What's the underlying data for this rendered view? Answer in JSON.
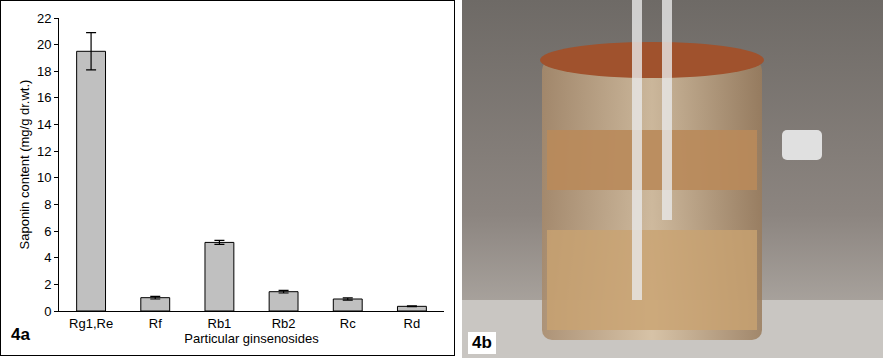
{
  "chart_data": {
    "type": "bar",
    "panel_label": "4a",
    "x_label": "Particular ginsenosides",
    "y_label": "Saponin content (mg/g dr.wt.)",
    "categories": [
      "Rg1,Re",
      "Rf",
      "Rb1",
      "Rb2",
      "Rc",
      "Rd"
    ],
    "values": [
      19.5,
      1.0,
      5.15,
      1.45,
      0.9,
      0.35
    ],
    "errors": [
      1.4,
      0.1,
      0.15,
      0.1,
      0.08,
      0.03
    ],
    "color": "#c0c0c0",
    "ylim": [
      0,
      22
    ],
    "yticks": [
      0,
      2,
      4,
      6,
      8,
      10,
      12,
      14,
      16,
      18,
      20,
      22
    ],
    "grid": false
  },
  "photo": {
    "label": "4b"
  }
}
